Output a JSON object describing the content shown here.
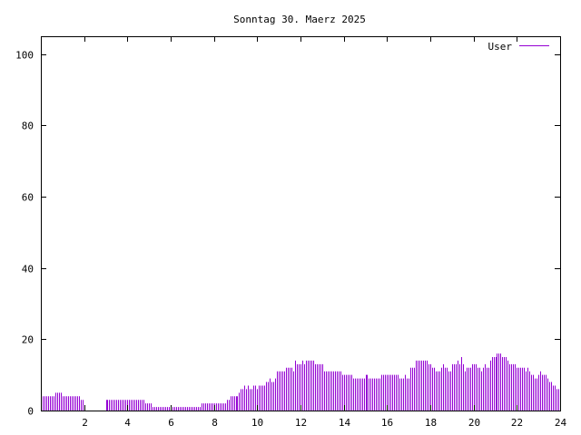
{
  "chart_data": {
    "type": "bar",
    "style": "impulses",
    "title": "Sonntag 30. Maerz 2025",
    "xlabel": "",
    "ylabel": "",
    "xlim": [
      0,
      24
    ],
    "ylim": [
      0,
      105
    ],
    "x_ticks": [
      "2",
      "4",
      "6",
      "8",
      "10",
      "12",
      "14",
      "16",
      "18",
      "20",
      "22",
      "24"
    ],
    "x_tick_values": [
      2,
      4,
      6,
      8,
      10,
      12,
      14,
      16,
      18,
      20,
      22,
      24
    ],
    "y_ticks": [
      "0",
      "20",
      "40",
      "60",
      "80",
      "100"
    ],
    "y_tick_values": [
      0,
      20,
      40,
      60,
      80,
      100
    ],
    "grid": false,
    "legend_position": "top-right",
    "series": [
      {
        "name": "User",
        "color": "#9400d3",
        "values": [
          4,
          4,
          4,
          4,
          4,
          4,
          4,
          5,
          5,
          5,
          5,
          4,
          4,
          4,
          4,
          4,
          4,
          4,
          4,
          4,
          4,
          3,
          3,
          1,
          0,
          0,
          0,
          0,
          0,
          0,
          0,
          0,
          0,
          0,
          0,
          3,
          3,
          3,
          3,
          3,
          3,
          3,
          3,
          3,
          3,
          3,
          3,
          3,
          3,
          3,
          3,
          3,
          3,
          3,
          3,
          3,
          3,
          2,
          2,
          2,
          2,
          1,
          1,
          1,
          1,
          1,
          1,
          1,
          1,
          1,
          1,
          1,
          1,
          1,
          1,
          1,
          1,
          1,
          1,
          1,
          1,
          1,
          1,
          1,
          1,
          1,
          1,
          1,
          2,
          2,
          2,
          2,
          2,
          2,
          2,
          2,
          2,
          2,
          2,
          2,
          2,
          2,
          3,
          3,
          4,
          4,
          4,
          4,
          4,
          5,
          6,
          6,
          7,
          6,
          7,
          6,
          6,
          7,
          7,
          6,
          7,
          7,
          7,
          7,
          8,
          8,
          9,
          8,
          8,
          9,
          11,
          11,
          11,
          11,
          11,
          12,
          12,
          12,
          12,
          11,
          14,
          13,
          13,
          13,
          14,
          13,
          14,
          14,
          14,
          14,
          14,
          13,
          13,
          13,
          13,
          13,
          11,
          11,
          11,
          11,
          11,
          11,
          11,
          11,
          11,
          11,
          10,
          10,
          10,
          10,
          10,
          10,
          9,
          9,
          9,
          9,
          9,
          9,
          9,
          10,
          10,
          9,
          9,
          9,
          9,
          9,
          9,
          9,
          10,
          10,
          10,
          10,
          10,
          10,
          10,
          10,
          10,
          10,
          9,
          9,
          9,
          10,
          9,
          9,
          12,
          12,
          12,
          14,
          14,
          14,
          14,
          14,
          14,
          14,
          13,
          13,
          12,
          12,
          11,
          11,
          11,
          12,
          13,
          12,
          12,
          11,
          11,
          13,
          13,
          13,
          14,
          13,
          15,
          13,
          11,
          12,
          12,
          12,
          13,
          13,
          13,
          12,
          12,
          11,
          12,
          13,
          12,
          12,
          14,
          15,
          15,
          15,
          16,
          16,
          16,
          15,
          15,
          15,
          14,
          13,
          13,
          13,
          13,
          12,
          12,
          12,
          12,
          12,
          11,
          12,
          11,
          10,
          10,
          9,
          9,
          10,
          11,
          10,
          10,
          10,
          9,
          8,
          8,
          7,
          7,
          6,
          6
        ]
      }
    ]
  }
}
